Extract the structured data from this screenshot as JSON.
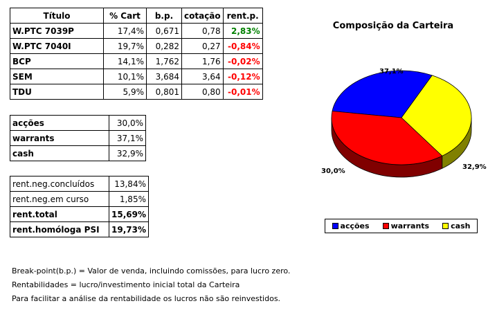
{
  "table": {
    "headers": [
      "Título",
      "% Cart",
      "b.p.",
      "cotação",
      "rent.p."
    ],
    "rows": [
      {
        "name": "W.PTC 7039P",
        "cart": "17,4%",
        "bp": "0,671",
        "cot": "0,78",
        "rent": "2,83%",
        "sign": "pos"
      },
      {
        "name": "W.PTC 7040I",
        "cart": "19,7%",
        "bp": "0,282",
        "cot": "0,27",
        "rent": "-0,84%",
        "sign": "neg"
      },
      {
        "name": "BCP",
        "cart": "14,1%",
        "bp": "1,762",
        "cot": "1,76",
        "rent": "-0,02%",
        "sign": "neg"
      },
      {
        "name": "SEM",
        "cart": "10,1%",
        "bp": "3,684",
        "cot": "3,64",
        "rent": "-0,12%",
        "sign": "neg"
      },
      {
        "name": "TDU",
        "cart": "5,9%",
        "bp": "0,801",
        "cot": "0,80",
        "rent": "-0,01%",
        "sign": "neg"
      }
    ]
  },
  "allocation": [
    {
      "label": "acções",
      "value": "30,0%"
    },
    {
      "label": "warrants",
      "value": "37,1%"
    },
    {
      "label": "cash",
      "value": "32,9%"
    }
  ],
  "returns": [
    {
      "label": "rent.neg.concluídos",
      "value": "13,84%",
      "bold": false
    },
    {
      "label": "rent.neg.em curso",
      "value": "1,85%",
      "bold": false
    },
    {
      "label": "rent.total",
      "value": "15,69%",
      "bold": true
    },
    {
      "label": "rent.homóloga PSI",
      "value": "19,73%",
      "bold": true
    }
  ],
  "notes": [
    "Break-point(b.p.) = Valor de venda, incluindo comissões, para lucro zero.",
    "Rentabilidades = lucro/investimento inicial total da Carteira",
    "Para facilitar a análise da rentabilidade os lucros não são reinvestidos."
  ],
  "chart_data": {
    "type": "pie",
    "title": "Composição da Carteira",
    "slices": [
      {
        "name": "acções",
        "value": 30.0,
        "label": "30,0%",
        "color": "#0000ff",
        "dark": "#000080"
      },
      {
        "name": "warrants",
        "value": 37.1,
        "label": "37,1%",
        "color": "#ff0000",
        "dark": "#800000"
      },
      {
        "name": "cash",
        "value": 32.9,
        "label": "32,9%",
        "color": "#ffff00",
        "dark": "#808000"
      }
    ],
    "legend_position": "bottom"
  },
  "colors": {
    "negative": "#ff0000",
    "positive": "#008000"
  }
}
